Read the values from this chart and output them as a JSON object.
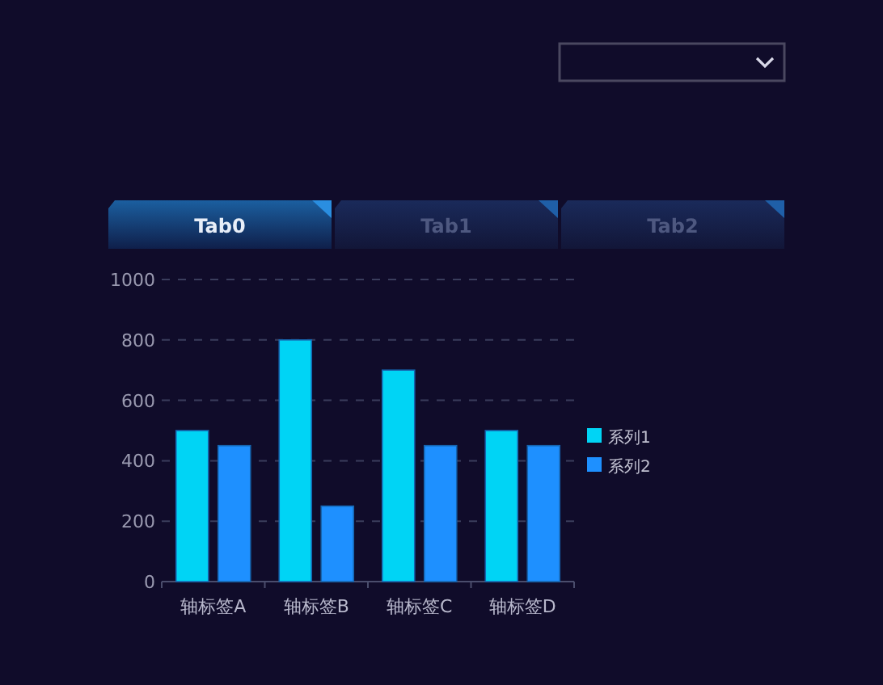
{
  "chart_data": {
    "type": "bar",
    "categories": [
      "轴标签A",
      "轴标签B",
      "轴标签C",
      "轴标签D"
    ],
    "series": [
      {
        "name": "系列1",
        "color": "#00d4f5",
        "values": [
          500,
          800,
          700,
          500
        ]
      },
      {
        "name": "系列2",
        "color": "#1e90ff",
        "values": [
          450,
          250,
          450,
          450
        ]
      }
    ],
    "ylim": [
      0,
      1000
    ],
    "yticks": [
      0,
      200,
      400,
      600,
      800,
      1000
    ],
    "grid": "y",
    "legend": "right",
    "annotations": [
      "Tab0",
      "Tab1",
      "Tab2"
    ]
  }
}
